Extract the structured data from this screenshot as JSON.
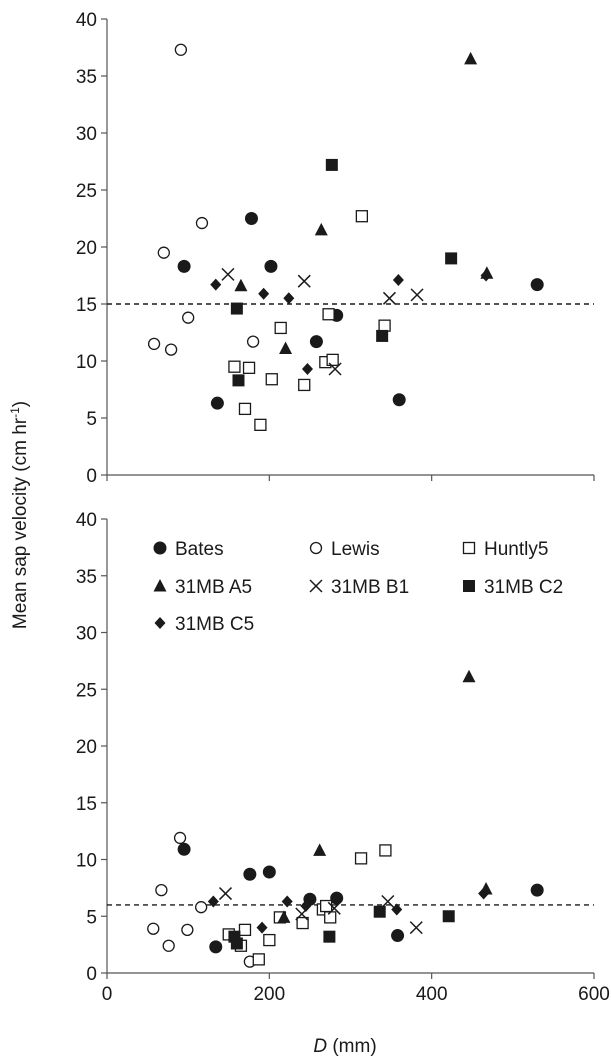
{
  "chart_data": [
    {
      "panel": "top",
      "type": "scatter",
      "title": "",
      "xlabel": "",
      "ylabel": "",
      "xlim": [
        0,
        600
      ],
      "ylim": [
        0,
        40
      ],
      "y_ticks": [
        "0",
        "5",
        "10",
        "15",
        "20",
        "25",
        "30",
        "35",
        "40"
      ],
      "x_ticks": [],
      "show_x_tick_labels": false,
      "grid": false,
      "reference_line": {
        "y": 15,
        "style": "dashed"
      },
      "series": [
        {
          "name": "Bates",
          "marker": "circle-filled",
          "points": [
            [
              95,
              18.3
            ],
            [
              136,
              6.3
            ],
            [
              178,
              22.5
            ],
            [
              202,
              18.3
            ],
            [
              258,
              11.7
            ],
            [
              283,
              14
            ],
            [
              360,
              6.6
            ],
            [
              530,
              16.7
            ]
          ]
        },
        {
          "name": "Lewis",
          "marker": "circle-open",
          "points": [
            [
              58,
              11.5
            ],
            [
              70,
              19.5
            ],
            [
              79,
              11
            ],
            [
              91,
              37.3
            ],
            [
              100,
              13.8
            ],
            [
              117,
              22.1
            ],
            [
              180,
              11.7
            ]
          ]
        },
        {
          "name": "Huntly5",
          "marker": "square-open",
          "points": [
            [
              157,
              9.5
            ],
            [
              170,
              5.8
            ],
            [
              175,
              9.4
            ],
            [
              189,
              4.4
            ],
            [
              203,
              8.4
            ],
            [
              214,
              12.9
            ],
            [
              243,
              7.9
            ],
            [
              269,
              9.9
            ],
            [
              273,
              14.1
            ],
            [
              278,
              10.1
            ],
            [
              342,
              13.1
            ],
            [
              314,
              22.7
            ]
          ]
        },
        {
          "name": "31MB A5",
          "marker": "triangle-filled",
          "points": [
            [
              165,
              16.6
            ],
            [
              220,
              11.1
            ],
            [
              264,
              21.5
            ],
            [
              448,
              36.5
            ],
            [
              468,
              17.7
            ]
          ]
        },
        {
          "name": "31MB B1",
          "marker": "x",
          "points": [
            [
              149,
              17.6
            ],
            [
              243,
              17
            ],
            [
              281,
              9.3
            ],
            [
              348,
              15.5
            ],
            [
              382,
              15.8
            ]
          ]
        },
        {
          "name": "31MB C2",
          "marker": "square-filled",
          "points": [
            [
              160,
              14.6
            ],
            [
              162,
              8.3
            ],
            [
              277,
              27.2
            ],
            [
              339,
              12.2
            ],
            [
              424,
              19
            ]
          ]
        },
        {
          "name": "31MB C5",
          "marker": "diamond-filled",
          "points": [
            [
              134,
              16.7
            ],
            [
              193,
              15.9
            ],
            [
              224,
              15.5
            ],
            [
              247,
              9.3
            ],
            [
              359,
              17.1
            ],
            [
              467,
              17.5
            ]
          ]
        }
      ]
    },
    {
      "panel": "bottom",
      "type": "scatter",
      "title": "",
      "xlabel": "D (mm)",
      "xlabel_italic_part": "D",
      "xlabel_rest": " (mm)",
      "ylabel": "",
      "xlim": [
        0,
        600
      ],
      "ylim": [
        0,
        40
      ],
      "y_ticks": [
        "0",
        "5",
        "10",
        "15",
        "20",
        "25",
        "30",
        "35",
        "40"
      ],
      "x_ticks": [
        "0",
        "200",
        "400",
        "600"
      ],
      "grid": false,
      "reference_line": {
        "y": 6,
        "style": "dashed"
      },
      "legend": "top-left",
      "series": [
        {
          "name": "Bates",
          "marker": "circle-filled",
          "points": [
            [
              95,
              10.9
            ],
            [
              134,
              2.3
            ],
            [
              176,
              8.7
            ],
            [
              200,
              8.9
            ],
            [
              250,
              6.5
            ],
            [
              283,
              6.6
            ],
            [
              358,
              3.3
            ],
            [
              530,
              7.3
            ]
          ]
        },
        {
          "name": "Lewis",
          "marker": "circle-open",
          "points": [
            [
              57,
              3.9
            ],
            [
              67,
              7.3
            ],
            [
              76,
              2.4
            ],
            [
              90,
              11.9
            ],
            [
              99,
              3.8
            ],
            [
              116,
              5.8
            ],
            [
              176,
              1
            ]
          ]
        },
        {
          "name": "Huntly5",
          "marker": "square-open",
          "points": [
            [
              150,
              3.4
            ],
            [
              165,
              2.4
            ],
            [
              170,
              3.8
            ],
            [
              187,
              1.2
            ],
            [
              200,
              2.9
            ],
            [
              213,
              4.9
            ],
            [
              241,
              4.4
            ],
            [
              266,
              5.6
            ],
            [
              270,
              5.9
            ],
            [
              275,
              4.9
            ],
            [
              343,
              10.8
            ],
            [
              313,
              10.1
            ]
          ]
        },
        {
          "name": "31MB A5",
          "marker": "triangle-filled",
          "points": [
            [
              218,
              4.9
            ],
            [
              262,
              10.8
            ],
            [
              446,
              26.1
            ],
            [
              467,
              7.4
            ]
          ]
        },
        {
          "name": "31MB B1",
          "marker": "x",
          "points": [
            [
              146,
              7
            ],
            [
              240,
              5.2
            ],
            [
              280,
              5.7
            ],
            [
              346,
              6.3
            ],
            [
              381,
              4
            ]
          ]
        },
        {
          "name": "31MB C2",
          "marker": "square-filled",
          "points": [
            [
              157,
              3.2
            ],
            [
              160,
              2.6
            ],
            [
              274,
              3.2
            ],
            [
              336,
              5.4
            ],
            [
              421,
              5
            ]
          ]
        },
        {
          "name": "31MB C5",
          "marker": "diamond-filled",
          "points": [
            [
              131,
              6.3
            ],
            [
              191,
              4
            ],
            [
              222,
              6.3
            ],
            [
              245,
              5.9
            ],
            [
              357,
              5.6
            ],
            [
              464,
              7
            ]
          ]
        }
      ]
    }
  ],
  "shared_ylabel_main": "Mean sap velocity (cm hr",
  "shared_ylabel_sup": "-1",
  "shared_ylabel_end": ")"
}
